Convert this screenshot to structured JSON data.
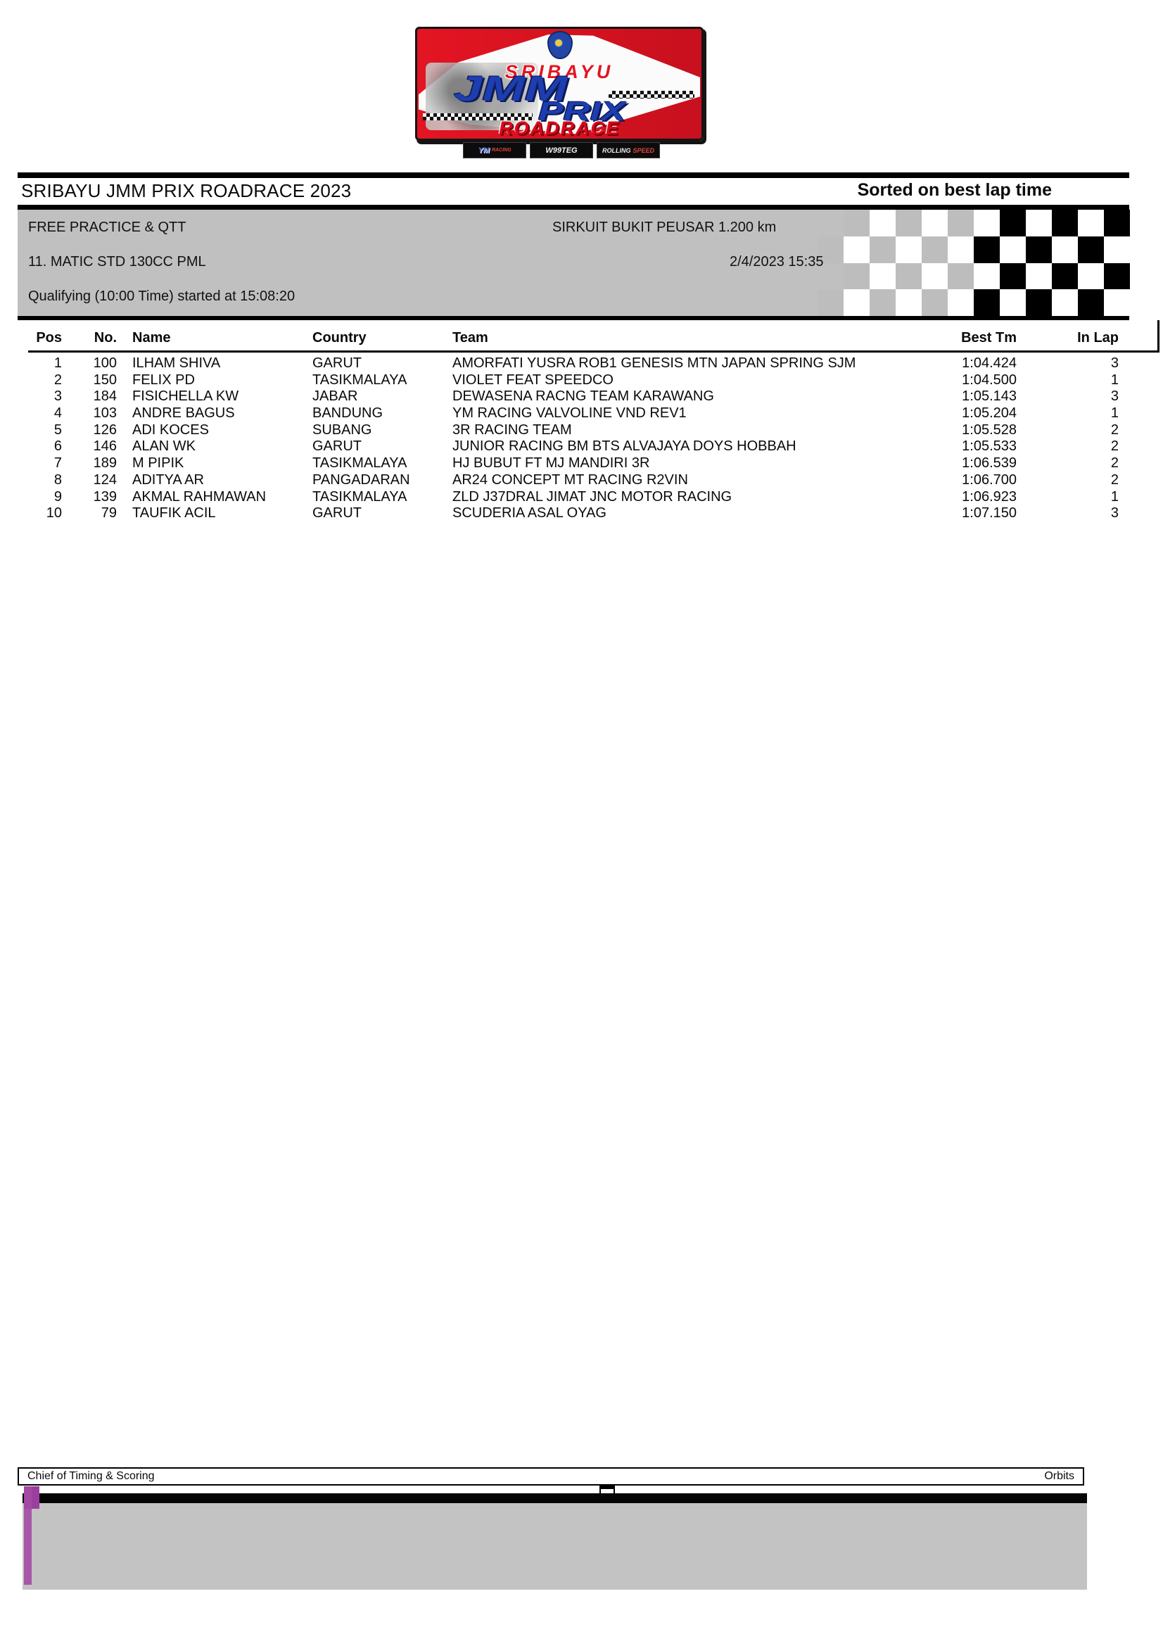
{
  "logo": {
    "series_name": "SRIBAYU",
    "word1": "JMM",
    "word2": "PRIX",
    "word3": "ROADRACE",
    "year": "2023",
    "sponsors": [
      {
        "label": "YM",
        "label2": "RACING"
      },
      {
        "label": "W99TEG",
        "label2": ""
      },
      {
        "label": "ROLLING",
        "label2": "SPEED"
      }
    ]
  },
  "title_bar": {
    "title": "SRIBAYU JMM PRIX ROADRACE 2023",
    "sort_note": "Sorted on best lap time"
  },
  "session_info": {
    "session": "FREE PRACTICE & QTT",
    "circuit": "SIRKUIT BUKIT PEUSAR 1.200 km",
    "class": "11. MATIC STD 130CC PML",
    "datetime": "2/4/2023 15:35",
    "status": "Qualifying (10:00 Time) started at 15:08:20"
  },
  "results_table": {
    "columns": [
      "Pos",
      "No.",
      "Name",
      "Country",
      "Team",
      "Best Tm",
      "In Lap"
    ],
    "rows": [
      {
        "pos": "1",
        "no": "100",
        "name": "ILHAM SHIVA",
        "country": "GARUT",
        "team": "AMORFATI YUSRA ROB1 GENESIS MTN JAPAN SPRING SJM",
        "best_tm": "1:04.424",
        "in_lap": "3"
      },
      {
        "pos": "2",
        "no": "150",
        "name": "FELIX PD",
        "country": "TASIKMALAYA",
        "team": "VIOLET FEAT SPEEDCO",
        "best_tm": "1:04.500",
        "in_lap": "1"
      },
      {
        "pos": "3",
        "no": "184",
        "name": "FISICHELLA KW",
        "country": "JABAR",
        "team": "DEWASENA RACNG TEAM KARAWANG",
        "best_tm": "1:05.143",
        "in_lap": "3"
      },
      {
        "pos": "4",
        "no": "103",
        "name": "ANDRE BAGUS",
        "country": "BANDUNG",
        "team": "YM RACING VALVOLINE VND REV1",
        "best_tm": "1:05.204",
        "in_lap": "1"
      },
      {
        "pos": "5",
        "no": "126",
        "name": "ADI KOCES",
        "country": "SUBANG",
        "team": "3R RACING TEAM",
        "best_tm": "1:05.528",
        "in_lap": "2"
      },
      {
        "pos": "6",
        "no": "146",
        "name": "ALAN WK",
        "country": "GARUT",
        "team": "JUNIOR RACING BM BTS ALVAJAYA DOYS HOBBAH",
        "best_tm": "1:05.533",
        "in_lap": "2"
      },
      {
        "pos": "7",
        "no": "189",
        "name": "M PIPIK",
        "country": "TASIKMALAYA",
        "team": "HJ BUBUT FT MJ MANDIRI 3R",
        "best_tm": "1:06.539",
        "in_lap": "2"
      },
      {
        "pos": "8",
        "no": "124",
        "name": "ADITYA AR",
        "country": "PANGADARAN",
        "team": "AR24 CONCEPT MT RACING R2VIN",
        "best_tm": "1:06.700",
        "in_lap": "2"
      },
      {
        "pos": "9",
        "no": "139",
        "name": "AKMAL RAHMAWAN",
        "country": "TASIKMALAYA",
        "team": "ZLD J37DRAL JIMAT JNC MOTOR RACING",
        "best_tm": "1:06.923",
        "in_lap": "1"
      },
      {
        "pos": "10",
        "no": "79",
        "name": "TAUFIK ACIL",
        "country": "GARUT",
        "team": "SCUDERIA ASAL OYAG",
        "best_tm": "1:07.150",
        "in_lap": "3"
      }
    ]
  },
  "footer": {
    "left_label": "Chief of Timing & Scoring",
    "right_label": "Orbits"
  },
  "colors": {
    "session_box_gray": "#c0c0c0",
    "logo_red": "#e31522",
    "logo_blue": "#1d3db0",
    "checker_black": "#000000",
    "marker_purple": "#9b3f9f"
  }
}
